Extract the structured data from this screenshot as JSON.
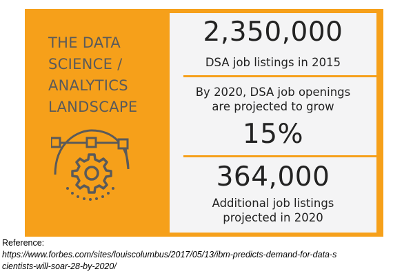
{
  "infographic": {
    "title_lines": [
      "THE DATA",
      "SCIENCE /",
      "ANALYTICS",
      "LANDSCAPE"
    ],
    "icon": "gear-with-arc-and-nodes-icon",
    "stats": {
      "listings_2015_value": "2,350,000",
      "listings_2015_label": "DSA job listings in 2015",
      "projection_line1": "By 2020, DSA job openings",
      "projection_line2": "are projected to grow",
      "growth_percent": "15%",
      "additional_value": "364,000",
      "additional_label_line1": "Additional job listings",
      "additional_label_line2": "projected in 2020"
    },
    "colors": {
      "accent": "#f6a01a",
      "panel": "#f4f4f5",
      "title_text": "#5a5a5a",
      "stat_text": "#222222"
    }
  },
  "reference": {
    "label": "Reference:",
    "url_line1": "https://www.forbes.com/sites/louiscolumbus/2017/05/13/ibm-predicts-demand-for-data-s",
    "url_line2": "cientists-will-soar-28-by-2020/"
  }
}
